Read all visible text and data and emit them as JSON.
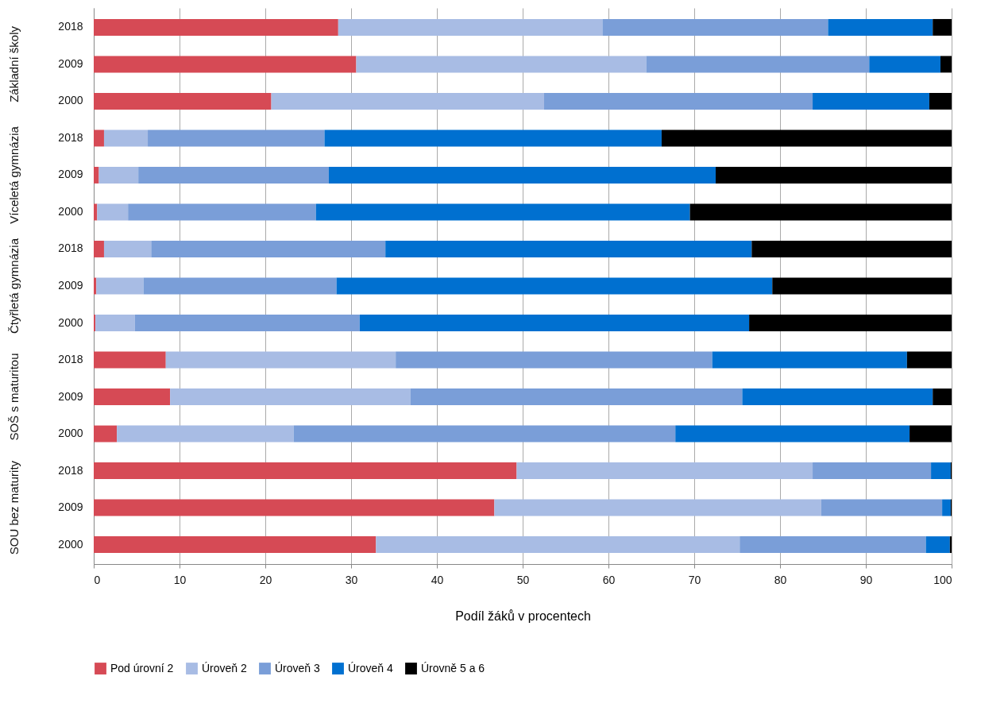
{
  "chart_data": {
    "type": "bar",
    "orientation": "horizontal",
    "stacked": true,
    "xlabel": "Podíl žáků v procentech",
    "xlim": [
      0,
      100
    ],
    "xticks": [
      0,
      10,
      20,
      30,
      40,
      50,
      60,
      70,
      80,
      90,
      100
    ],
    "grid": "x",
    "legend": "bottom",
    "categories": [
      "2018",
      "2009",
      "2000",
      "2018",
      "2009",
      "2000",
      "2018",
      "2009",
      "2000",
      "2018",
      "2009",
      "2000",
      "2018",
      "2009",
      "2000"
    ],
    "annotations": [
      "Základní školy",
      "Víceletá gymnázia",
      "Čtyřletá gymnázia",
      "SOŠ s maturitou",
      "SOU bez maturity"
    ],
    "series": [
      {
        "name": "Pod úrovní 2",
        "color": "#d64a55",
        "values": [
          28.5,
          30.6,
          20.7,
          1.2,
          0.6,
          0.4,
          1.2,
          0.3,
          0.2,
          8.4,
          8.9,
          2.7,
          49.3,
          46.7,
          32.9
        ]
      },
      {
        "name": "Úroveň 2",
        "color": "#a8bce4",
        "values": [
          30.8,
          33.8,
          31.8,
          5.1,
          4.6,
          3.6,
          5.5,
          5.5,
          4.6,
          26.8,
          28.0,
          20.6,
          34.5,
          38.1,
          42.4
        ]
      },
      {
        "name": "Úroveň 3",
        "color": "#7a9ed8",
        "values": [
          26.3,
          26.0,
          31.3,
          20.6,
          22.2,
          21.9,
          27.3,
          22.5,
          26.2,
          36.9,
          38.7,
          44.5,
          13.8,
          14.1,
          21.7
        ]
      },
      {
        "name": "Úroveň 4",
        "color": "#0070d0",
        "values": [
          12.2,
          8.3,
          13.6,
          39.3,
          45.1,
          43.6,
          42.7,
          50.8,
          45.4,
          22.7,
          22.2,
          27.3,
          2.3,
          1.0,
          2.8
        ]
      },
      {
        "name": "Úrovně 5 a 6",
        "color": "#000000",
        "values": [
          2.2,
          1.3,
          2.6,
          33.8,
          27.5,
          30.5,
          23.3,
          20.9,
          23.6,
          5.2,
          2.2,
          4.9,
          0.1,
          0.1,
          0.2
        ]
      }
    ]
  }
}
